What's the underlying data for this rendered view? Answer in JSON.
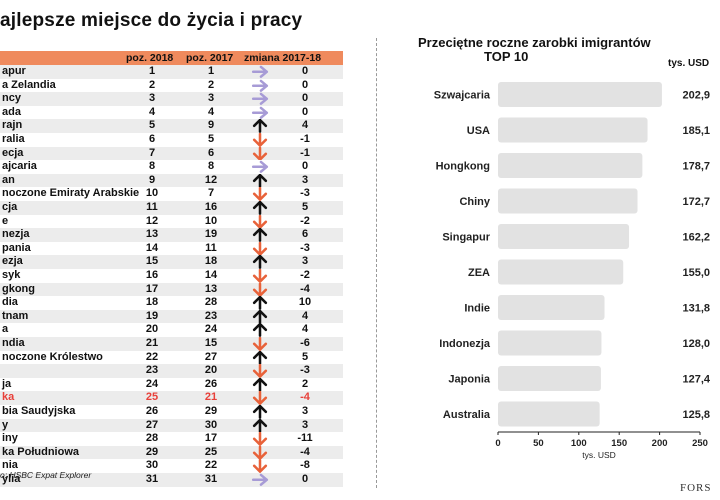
{
  "left": {
    "title": "ajlepsze miejsce do życia i pracy",
    "headers": {
      "y2018": "poz. 2018",
      "y2017": "poz. 2017",
      "change": "zmiana 2017-18"
    },
    "source": "o: HSBC Expat Explorer",
    "accent_color": "#ef8a5d",
    "rows": [
      {
        "name": "apur",
        "y2018": "1",
        "y2017": "1",
        "dir": "same",
        "change": "0"
      },
      {
        "name": "a Zelandia",
        "y2018": "2",
        "y2017": "2",
        "dir": "same",
        "change": "0"
      },
      {
        "name": "ncy",
        "y2018": "3",
        "y2017": "3",
        "dir": "same",
        "change": "0"
      },
      {
        "name": "ada",
        "y2018": "4",
        "y2017": "4",
        "dir": "same",
        "change": "0"
      },
      {
        "name": "rajn",
        "y2018": "5",
        "y2017": "9",
        "dir": "up",
        "change": "4"
      },
      {
        "name": "ralia",
        "y2018": "6",
        "y2017": "5",
        "dir": "down",
        "change": "-1"
      },
      {
        "name": "ecja",
        "y2018": "7",
        "y2017": "6",
        "dir": "down",
        "change": "-1"
      },
      {
        "name": "ajcaria",
        "y2018": "8",
        "y2017": "8",
        "dir": "same",
        "change": "0"
      },
      {
        "name": "an",
        "y2018": "9",
        "y2017": "12",
        "dir": "up",
        "change": "3"
      },
      {
        "name": "noczone Emiraty Arabskie",
        "y2018": "10",
        "y2017": "7",
        "dir": "down",
        "change": "-3"
      },
      {
        "name": "cja",
        "y2018": "11",
        "y2017": "16",
        "dir": "up",
        "change": "5"
      },
      {
        "name": "e",
        "y2018": "12",
        "y2017": "10",
        "dir": "down",
        "change": "-2"
      },
      {
        "name": "nezja",
        "y2018": "13",
        "y2017": "19",
        "dir": "up",
        "change": "6"
      },
      {
        "name": "pania",
        "y2018": "14",
        "y2017": "11",
        "dir": "down",
        "change": "-3"
      },
      {
        "name": "ezja",
        "y2018": "15",
        "y2017": "18",
        "dir": "up",
        "change": "3"
      },
      {
        "name": "syk",
        "y2018": "16",
        "y2017": "14",
        "dir": "down",
        "change": "-2"
      },
      {
        "name": "gkong",
        "y2018": "17",
        "y2017": "13",
        "dir": "down",
        "change": "-4"
      },
      {
        "name": "dia",
        "y2018": "18",
        "y2017": "28",
        "dir": "up",
        "change": "10"
      },
      {
        "name": "tnam",
        "y2018": "19",
        "y2017": "23",
        "dir": "up",
        "change": "4"
      },
      {
        "name": "a",
        "y2018": "20",
        "y2017": "24",
        "dir": "up",
        "change": "4"
      },
      {
        "name": "ndia",
        "y2018": "21",
        "y2017": "15",
        "dir": "down",
        "change": "-6"
      },
      {
        "name": "noczone Królestwo",
        "y2018": "22",
        "y2017": "27",
        "dir": "up",
        "change": "5"
      },
      {
        "name": "",
        "y2018": "23",
        "y2017": "20",
        "dir": "down",
        "change": "-3"
      },
      {
        "name": "ja",
        "y2018": "24",
        "y2017": "26",
        "dir": "up",
        "change": "2"
      },
      {
        "name": "ka",
        "y2018": "25",
        "y2017": "21",
        "dir": "down",
        "change": "-4",
        "highlight": true
      },
      {
        "name": "bia Saudyjska",
        "y2018": "26",
        "y2017": "29",
        "dir": "up",
        "change": "3"
      },
      {
        "name": "y",
        "y2018": "27",
        "y2017": "30",
        "dir": "up",
        "change": "3"
      },
      {
        "name": "iny",
        "y2018": "28",
        "y2017": "17",
        "dir": "down",
        "change": "-11"
      },
      {
        "name": "ka Południowa",
        "y2018": "29",
        "y2017": "25",
        "dir": "down",
        "change": "-4"
      },
      {
        "name": "nia",
        "y2018": "30",
        "y2017": "22",
        "dir": "down",
        "change": "-8"
      },
      {
        "name": "ylia",
        "y2018": "31",
        "y2017": "31",
        "dir": "same",
        "change": "0"
      }
    ]
  },
  "chart_data": {
    "type": "bar",
    "orientation": "horizontal",
    "title": "Przeciętne roczne zarobki imigrantów",
    "subtitle": "TOP 10",
    "unit_label": "tys. USD",
    "xlabel": "tys. USD",
    "categories": [
      "Szwajcaria",
      "USA",
      "Hongkong",
      "Chiny",
      "Singapur",
      "ZEA",
      "Indie",
      "Indonezja",
      "Japonia",
      "Australia"
    ],
    "values": [
      202.9,
      185.1,
      178.7,
      172.7,
      162.2,
      155.0,
      131.8,
      128.0,
      127.4,
      125.8
    ],
    "value_labels": [
      "202,9",
      "185,1",
      "178,7",
      "172,7",
      "162,2",
      "155,0",
      "131,8",
      "128,0",
      "127,4",
      "125,8"
    ],
    "xlim": [
      0,
      250
    ],
    "xticks": [
      0,
      50,
      100,
      150,
      200,
      250
    ],
    "bar_color": "#e2e2e2",
    "grid": false
  },
  "logo": "FORS"
}
